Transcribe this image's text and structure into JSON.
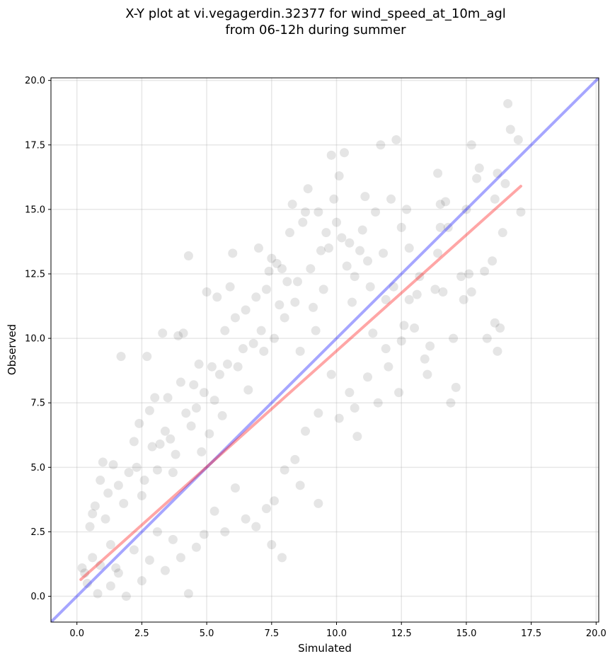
{
  "chart_data": {
    "type": "scatter",
    "title_line1": "X-Y plot at vi.vegagerdin.32377 for wind_speed_at_10m_agl",
    "title_line2": "from 06-12h during summer",
    "xlabel": "Simulated",
    "ylabel": "Observed",
    "xlim": [
      -1.0,
      20.1
    ],
    "ylim": [
      -1.0,
      20.1
    ],
    "x_ticks": [
      0.0,
      2.5,
      5.0,
      7.5,
      10.0,
      12.5,
      15.0,
      17.5,
      20.0
    ],
    "y_ticks": [
      0.0,
      2.5,
      5.0,
      7.5,
      10.0,
      12.5,
      15.0,
      17.5,
      20.0
    ],
    "x_tick_labels": [
      "0.0",
      "2.5",
      "5.0",
      "7.5",
      "10.0",
      "12.5",
      "15.0",
      "17.5",
      "20.0"
    ],
    "y_tick_labels": [
      "0.0",
      "2.5",
      "5.0",
      "7.5",
      "10.0",
      "12.5",
      "15.0",
      "17.5",
      "20.0"
    ],
    "grid": true,
    "point_color": "#000000",
    "point_opacity": 0.1,
    "series": [
      {
        "values": [
          [
            0.2,
            1.1
          ],
          [
            0.3,
            0.9
          ],
          [
            0.6,
            1.5
          ],
          [
            0.8,
            0.1
          ],
          [
            0.4,
            0.5
          ],
          [
            0.5,
            2.7
          ],
          [
            0.7,
            3.5
          ],
          [
            0.9,
            4.5
          ],
          [
            0.6,
            3.2
          ],
          [
            1.0,
            5.2
          ],
          [
            1.2,
            4.0
          ],
          [
            1.4,
            5.1
          ],
          [
            1.7,
            9.3
          ],
          [
            1.1,
            3.0
          ],
          [
            1.3,
            2.0
          ],
          [
            1.5,
            1.1
          ],
          [
            1.6,
            4.3
          ],
          [
            1.8,
            3.6
          ],
          [
            2.0,
            4.8
          ],
          [
            2.2,
            6.0
          ],
          [
            2.3,
            5.0
          ],
          [
            2.4,
            6.7
          ],
          [
            2.5,
            3.9
          ],
          [
            2.6,
            4.5
          ],
          [
            2.7,
            9.3
          ],
          [
            2.8,
            7.2
          ],
          [
            2.9,
            5.8
          ],
          [
            3.0,
            7.7
          ],
          [
            3.1,
            4.9
          ],
          [
            3.2,
            5.9
          ],
          [
            3.3,
            10.2
          ],
          [
            3.4,
            6.4
          ],
          [
            3.5,
            7.7
          ],
          [
            3.6,
            6.1
          ],
          [
            3.7,
            4.8
          ],
          [
            3.8,
            5.5
          ],
          [
            3.9,
            10.1
          ],
          [
            4.0,
            8.3
          ],
          [
            4.1,
            10.2
          ],
          [
            4.2,
            7.1
          ],
          [
            4.3,
            13.2
          ],
          [
            4.4,
            6.6
          ],
          [
            4.5,
            8.2
          ],
          [
            4.6,
            7.3
          ],
          [
            4.7,
            9.0
          ],
          [
            4.8,
            5.6
          ],
          [
            4.9,
            7.9
          ],
          [
            5.0,
            11.8
          ],
          [
            5.1,
            6.3
          ],
          [
            5.2,
            8.9
          ],
          [
            5.3,
            7.6
          ],
          [
            5.4,
            11.6
          ],
          [
            5.5,
            8.6
          ],
          [
            5.6,
            7.0
          ],
          [
            5.7,
            10.3
          ],
          [
            5.8,
            9.0
          ],
          [
            5.9,
            12.0
          ],
          [
            6.0,
            13.3
          ],
          [
            6.1,
            10.8
          ],
          [
            6.2,
            8.9
          ],
          [
            6.4,
            9.6
          ],
          [
            6.5,
            11.1
          ],
          [
            6.6,
            8.0
          ],
          [
            6.8,
            9.8
          ],
          [
            6.9,
            11.6
          ],
          [
            7.0,
            13.5
          ],
          [
            7.1,
            10.3
          ],
          [
            7.2,
            9.5
          ],
          [
            7.3,
            11.9
          ],
          [
            7.4,
            12.6
          ],
          [
            7.5,
            13.1
          ],
          [
            7.6,
            10.0
          ],
          [
            7.7,
            12.9
          ],
          [
            7.8,
            11.3
          ],
          [
            7.9,
            12.7
          ],
          [
            8.0,
            10.8
          ],
          [
            8.1,
            12.2
          ],
          [
            8.2,
            14.1
          ],
          [
            8.3,
            15.2
          ],
          [
            8.4,
            11.4
          ],
          [
            8.5,
            12.2
          ],
          [
            8.6,
            9.5
          ],
          [
            8.7,
            14.5
          ],
          [
            8.8,
            14.9
          ],
          [
            8.9,
            15.8
          ],
          [
            9.0,
            12.7
          ],
          [
            9.1,
            11.2
          ],
          [
            9.2,
            10.3
          ],
          [
            9.3,
            14.9
          ],
          [
            9.4,
            13.4
          ],
          [
            9.5,
            11.9
          ],
          [
            9.6,
            14.1
          ],
          [
            9.7,
            13.5
          ],
          [
            9.8,
            17.1
          ],
          [
            9.9,
            15.4
          ],
          [
            10.0,
            14.5
          ],
          [
            10.1,
            16.3
          ],
          [
            10.2,
            13.9
          ],
          [
            10.3,
            17.2
          ],
          [
            10.4,
            12.8
          ],
          [
            10.5,
            13.7
          ],
          [
            10.6,
            11.4
          ],
          [
            10.7,
            12.4
          ],
          [
            10.8,
            6.2
          ],
          [
            10.9,
            13.4
          ],
          [
            11.0,
            14.2
          ],
          [
            11.1,
            15.5
          ],
          [
            11.2,
            13.0
          ],
          [
            11.3,
            12.0
          ],
          [
            11.4,
            10.2
          ],
          [
            11.5,
            14.9
          ],
          [
            11.6,
            7.5
          ],
          [
            11.7,
            17.5
          ],
          [
            11.8,
            13.3
          ],
          [
            11.9,
            9.6
          ],
          [
            12.0,
            8.9
          ],
          [
            12.1,
            15.4
          ],
          [
            12.2,
            12.0
          ],
          [
            12.3,
            17.7
          ],
          [
            12.4,
            7.9
          ],
          [
            12.5,
            14.3
          ],
          [
            12.6,
            10.5
          ],
          [
            12.7,
            15.0
          ],
          [
            12.8,
            11.5
          ],
          [
            13.0,
            10.4
          ],
          [
            13.2,
            12.4
          ],
          [
            13.4,
            9.2
          ],
          [
            13.5,
            8.6
          ],
          [
            13.6,
            9.7
          ],
          [
            13.8,
            11.9
          ],
          [
            13.9,
            16.4
          ],
          [
            14.0,
            15.2
          ],
          [
            14.1,
            11.8
          ],
          [
            14.2,
            15.3
          ],
          [
            14.3,
            14.3
          ],
          [
            14.4,
            7.5
          ],
          [
            14.5,
            10.0
          ],
          [
            14.6,
            8.1
          ],
          [
            14.8,
            12.4
          ],
          [
            14.9,
            11.5
          ],
          [
            15.0,
            15.0
          ],
          [
            15.1,
            12.5
          ],
          [
            15.2,
            17.5
          ],
          [
            15.4,
            16.2
          ],
          [
            15.5,
            16.6
          ],
          [
            15.7,
            12.6
          ],
          [
            15.8,
            10.0
          ],
          [
            16.0,
            13.0
          ],
          [
            16.1,
            15.4
          ],
          [
            16.2,
            16.4
          ],
          [
            16.3,
            10.4
          ],
          [
            16.4,
            14.1
          ],
          [
            16.5,
            16.0
          ],
          [
            16.6,
            19.1
          ],
          [
            16.7,
            18.1
          ],
          [
            17.0,
            17.7
          ],
          [
            17.1,
            14.9
          ],
          [
            16.1,
            10.6
          ],
          [
            16.2,
            9.5
          ],
          [
            15.2,
            11.8
          ],
          [
            14.0,
            14.3
          ],
          [
            13.1,
            11.7
          ],
          [
            12.5,
            9.9
          ],
          [
            11.2,
            8.5
          ],
          [
            10.5,
            7.9
          ],
          [
            9.8,
            8.6
          ],
          [
            9.3,
            7.1
          ],
          [
            8.8,
            6.4
          ],
          [
            8.4,
            5.3
          ],
          [
            8.0,
            4.9
          ],
          [
            7.6,
            3.7
          ],
          [
            7.3,
            3.4
          ],
          [
            7.9,
            1.5
          ],
          [
            7.5,
            2.0
          ],
          [
            6.9,
            2.7
          ],
          [
            6.5,
            3.0
          ],
          [
            6.1,
            4.2
          ],
          [
            5.7,
            2.5
          ],
          [
            5.3,
            3.3
          ],
          [
            4.9,
            2.4
          ],
          [
            4.6,
            1.9
          ],
          [
            4.3,
            0.1
          ],
          [
            4.0,
            1.5
          ],
          [
            3.7,
            2.2
          ],
          [
            3.4,
            1.0
          ],
          [
            3.1,
            2.5
          ],
          [
            2.8,
            1.4
          ],
          [
            2.5,
            0.6
          ],
          [
            2.2,
            1.8
          ],
          [
            1.9,
            0.0
          ],
          [
            1.6,
            0.9
          ],
          [
            1.3,
            0.4
          ],
          [
            0.9,
            1.2
          ],
          [
            9.3,
            3.6
          ],
          [
            8.6,
            4.3
          ],
          [
            10.1,
            6.9
          ],
          [
            10.7,
            7.3
          ],
          [
            11.9,
            11.5
          ],
          [
            12.8,
            13.5
          ],
          [
            13.9,
            13.3
          ]
        ]
      }
    ],
    "lines": [
      {
        "name": "",
        "color": "#0000ff",
        "opacity": 0.35,
        "x": [
          -1.0,
          20.1
        ],
        "y": [
          -1.0,
          20.1
        ]
      },
      {
        "name": "",
        "color": "#ff0000",
        "opacity": 0.35,
        "x": [
          0.15,
          17.1
        ],
        "y": [
          0.65,
          15.9
        ]
      }
    ]
  }
}
